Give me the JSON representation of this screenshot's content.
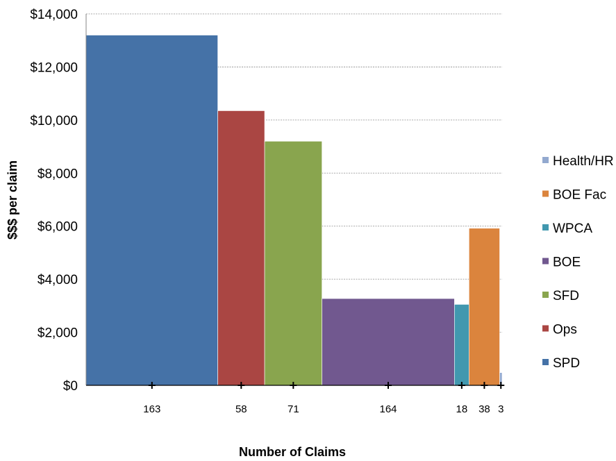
{
  "chart_data": {
    "type": "bar",
    "variant": "variable-width (mekko)",
    "categories": [
      "SPD",
      "Ops",
      "SFD",
      "BOE",
      "WPCA",
      "BOE Fac",
      "Health/HR"
    ],
    "widths": [
      163,
      58,
      71,
      164,
      18,
      38,
      3
    ],
    "width_labels": [
      "163",
      "58",
      "71",
      "164",
      "18",
      "38",
      "3"
    ],
    "values": [
      13200,
      10350,
      9200,
      3270,
      3050,
      5920,
      480
    ],
    "colors": [
      "#4572A7",
      "#AA4643",
      "#89A54E",
      "#71588F",
      "#4198AF",
      "#DB843D",
      "#93A9CF"
    ],
    "ylabel": "$$$ per claim",
    "xlabel": "Number of Claims",
    "ylim": [
      0,
      14000
    ],
    "yticks": [
      0,
      2000,
      4000,
      6000,
      8000,
      10000,
      12000,
      14000
    ],
    "ytick_labels": [
      "$0",
      "$2,000",
      "$4,000",
      "$6,000",
      "$8,000",
      "$10,000",
      "$12,000",
      "$14,000"
    ],
    "grid": true,
    "legend_position": "right",
    "legend": [
      "Health/HR",
      "BOE Fac",
      "WPCA",
      "BOE",
      "SFD",
      "Ops",
      "SPD"
    ]
  }
}
